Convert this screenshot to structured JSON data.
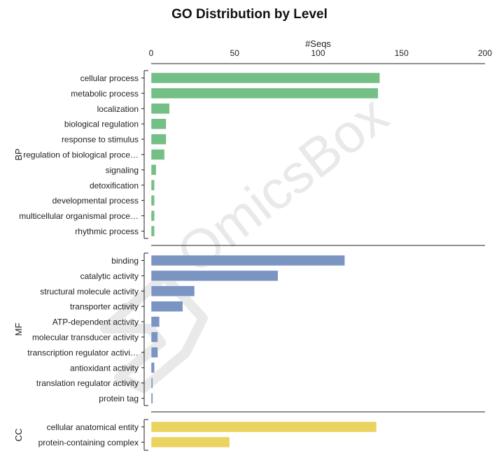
{
  "chart_data": {
    "type": "bar",
    "orientation": "horizontal",
    "title": "GO Distribution by Level",
    "xlabel": "#Seqs",
    "xlim": [
      0,
      200
    ],
    "xticks": [
      0,
      50,
      100,
      150,
      200
    ],
    "grid": false,
    "watermark": "OmicsBox",
    "groups": [
      {
        "name": "BP",
        "color": "#74bf85",
        "categories": [
          "cellular process",
          "metabolic process",
          "localization",
          "biological regulation",
          "response to stimulus",
          "regulation of biological proce…",
          "signaling",
          "detoxification",
          "developmental process",
          "multicellular organismal proce…",
          "rhythmic process"
        ],
        "values": [
          137,
          136,
          11,
          9,
          9,
          8,
          3,
          2,
          2,
          2,
          2
        ]
      },
      {
        "name": "MF",
        "color": "#7b95c2",
        "categories": [
          "binding",
          "catalytic activity",
          "structural molecule activity",
          "transporter activity",
          "ATP-dependent activity",
          "molecular transducer activity",
          "transcription regulator activi…",
          "antioxidant activity",
          "translation regulator activity",
          "protein tag"
        ],
        "values": [
          116,
          76,
          26,
          19,
          5,
          4,
          4,
          2,
          1,
          1
        ]
      },
      {
        "name": "CC",
        "color": "#ead35e",
        "categories": [
          "cellular anatomical entity",
          "protein-containing complex"
        ],
        "values": [
          135,
          47
        ]
      }
    ]
  }
}
